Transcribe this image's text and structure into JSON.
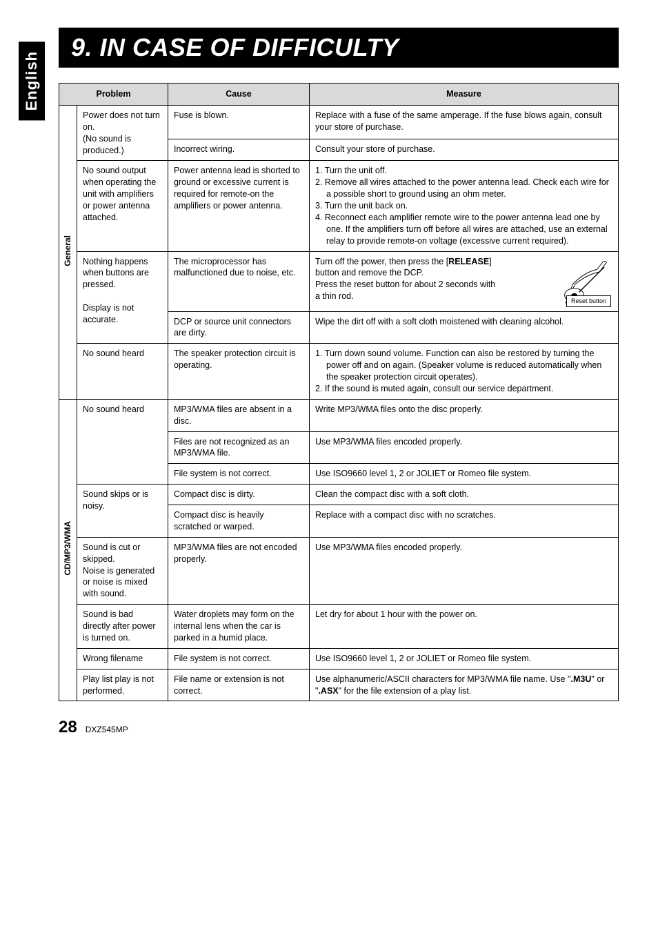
{
  "page": {
    "language_label": "English",
    "heading": "9. IN CASE OF DIFFICULTY",
    "page_number": "28",
    "model": "DXZ545MP"
  },
  "headers": {
    "problem": "Problem",
    "cause": "Cause",
    "measure": "Measure"
  },
  "categories": [
    {
      "label": "General"
    },
    {
      "label": "CD/MP3/WMA"
    }
  ],
  "rows": {
    "general": [
      {
        "problem": "Power does not turn on.\n(No sound is produced.)",
        "causes": [
          {
            "cause": "Fuse is blown.",
            "measure": "Replace with a fuse of the same amperage. If the fuse blows again, consult your store of purchase."
          },
          {
            "cause": "Incorrect wiring.",
            "measure": "Consult your store of purchase."
          }
        ]
      },
      {
        "problem": "No sound output when operating the unit with amplifiers or power antenna attached.",
        "causes": [
          {
            "cause": "Power antenna lead is shorted to ground or excessive current is required for remote-on the amplifiers or power antenna.",
            "measure_is_steps": true,
            "steps": [
              "1.  Turn the unit off.",
              "2.  Remove all wires attached to the power antenna lead. Check each wire for a possible short to ground using an ohm meter.",
              "3.  Turn the unit back on.",
              "4.  Reconnect each amplifier remote wire to  the power antenna lead one by one. If the amplifiers turn off before all wires are attached, use an external relay to provide remote-on voltage (excessive current required)."
            ]
          }
        ]
      },
      {
        "problem": "Nothing happens when buttons are pressed.\n\nDisplay is not accurate.",
        "causes": [
          {
            "cause": "The microprocessor has malfunctioned due to noise, etc.",
            "measure_html": "Turn off the power, then press the [<b>RELEASE</b>] button and remove the DCP.<br>Press the reset button for about 2 seconds with a thin rod.",
            "has_reset_icon": true,
            "reset_label": "Reset button"
          },
          {
            "cause": "DCP or source unit connectors are dirty.",
            "measure": "Wipe the dirt off with a soft cloth moistened with cleaning alcohol."
          }
        ]
      },
      {
        "problem": "No sound heard",
        "causes": [
          {
            "cause": "The speaker protection circuit is operating.",
            "measure_is_steps": true,
            "steps": [
              "1.  Turn down sound volume. Function can also be restored by turning the power off and on again. (Speaker volume is reduced automatically when the speaker protection circuit operates).",
              "2.  If the sound is muted again, consult our service department."
            ]
          }
        ]
      }
    ],
    "cd": [
      {
        "problem": "No sound heard",
        "causes": [
          {
            "cause": "MP3/WMA files are absent in a disc.",
            "measure": "Write MP3/WMA files onto the disc properly."
          },
          {
            "cause": "Files are not recognized as an MP3/WMA file.",
            "measure": "Use MP3/WMA files encoded properly."
          },
          {
            "cause": "File system is not correct.",
            "measure": "Use ISO9660 level 1, 2 or JOLIET or Romeo file system."
          }
        ]
      },
      {
        "problem": "Sound skips or is noisy.",
        "causes": [
          {
            "cause": "Compact disc is dirty.",
            "measure": "Clean the compact disc with a soft cloth."
          },
          {
            "cause": "Compact disc is heavily scratched or warped.",
            "measure": "Replace with a compact disc with no scratches."
          }
        ]
      },
      {
        "problem": "Sound is cut or skipped.\nNoise is generated or noise is mixed with sound.",
        "causes": [
          {
            "cause": "MP3/WMA files are not encoded properly.",
            "measure": "Use MP3/WMA files encoded properly."
          }
        ]
      },
      {
        "problem": "Sound is bad directly after power is turned on.",
        "causes": [
          {
            "cause": "Water droplets may form on the internal lens when the car is parked in a humid place.",
            "measure": "Let dry for about 1 hour with the power on."
          }
        ]
      },
      {
        "problem": "Wrong filename",
        "causes": [
          {
            "cause": "File system is not correct.",
            "measure": "Use ISO9660 level 1, 2 or JOLIET or Romeo file system."
          }
        ]
      },
      {
        "problem": "Play list play is not performed.",
        "causes": [
          {
            "cause": "File name or extension is not correct.",
            "measure_html": "Use alphanumeric/ASCII characters for MP3/WMA file name. Use \"<b>.M3U</b>\" or \"<b>.ASX</b>\" for the file extension of a play list."
          }
        ]
      }
    ]
  }
}
